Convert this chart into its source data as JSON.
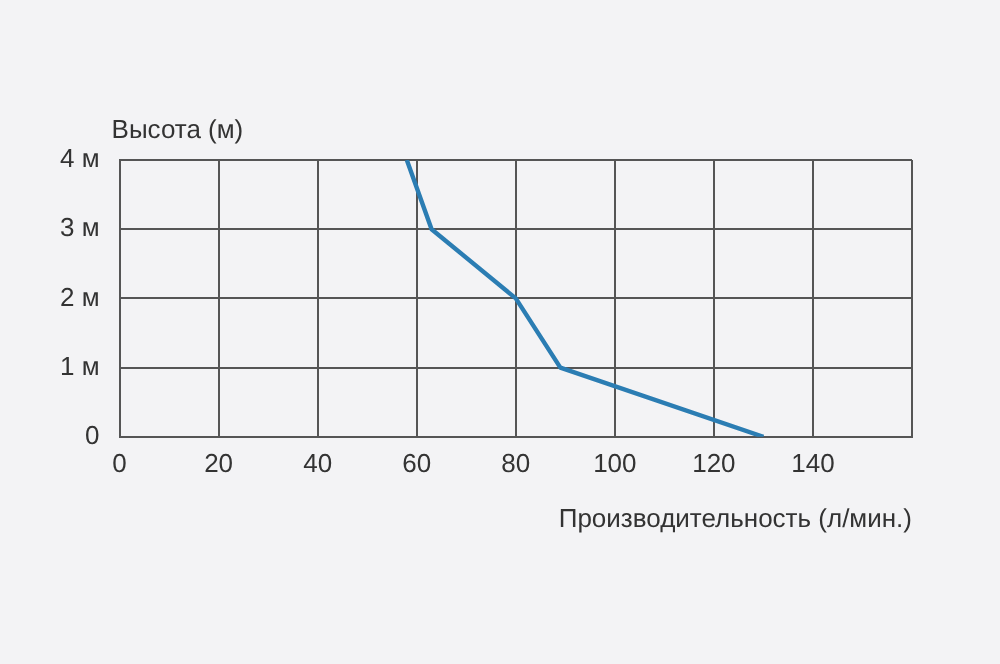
{
  "chart_data": {
    "type": "line",
    "xlabel": "Производительность (л/мин.)",
    "ylabel": "Высота (м)",
    "x": [
      58,
      63,
      80,
      89,
      130
    ],
    "series": [
      {
        "color": "#2b7db3",
        "values": [
          4,
          3,
          2,
          1,
          0
        ]
      }
    ],
    "xlim": [
      0,
      160
    ],
    "xticks": [
      0,
      20,
      40,
      60,
      80,
      100,
      120,
      140,
      {
        "value": 160,
        "label": null
      }
    ],
    "ylim": [
      0,
      4
    ],
    "yticks": [
      {
        "value": 0,
        "label": "0"
      },
      {
        "value": 1,
        "label": "1 м"
      },
      {
        "value": 2,
        "label": "2 м"
      },
      {
        "value": 3,
        "label": "3 м"
      },
      {
        "value": 4,
        "label": "4 м"
      }
    ],
    "grid": true,
    "legend": false,
    "marker": "none",
    "line_style": "solid"
  }
}
